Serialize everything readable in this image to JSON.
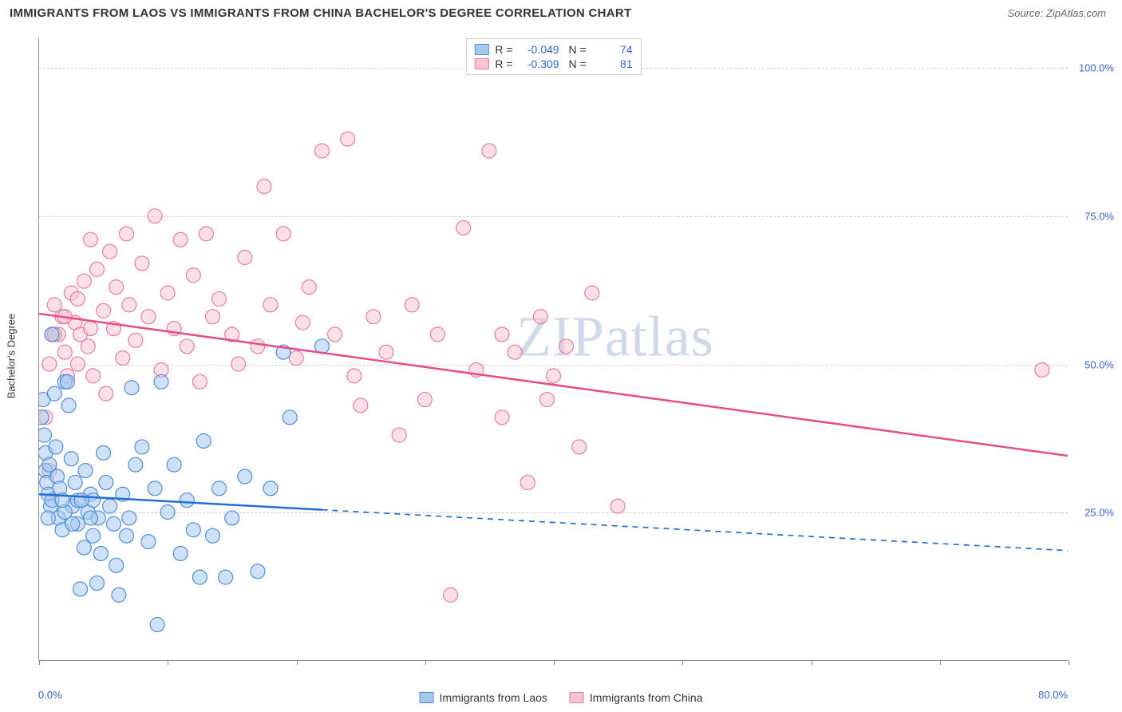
{
  "title": "IMMIGRANTS FROM LAOS VS IMMIGRANTS FROM CHINA BACHELOR'S DEGREE CORRELATION CHART",
  "source": "Source: ZipAtlas.com",
  "watermark": "ZIPatlas",
  "chart": {
    "type": "scatter",
    "y_axis_title": "Bachelor's Degree",
    "xlim": [
      0,
      80
    ],
    "ylim": [
      0,
      105
    ],
    "x_ticks": [
      0,
      10,
      20,
      30,
      40,
      50,
      60,
      70,
      80
    ],
    "x_tick_labels": {
      "left": "0.0%",
      "right": "80.0%"
    },
    "y_ticks": [
      25,
      50,
      75,
      100
    ],
    "y_tick_labels": [
      "25.0%",
      "50.0%",
      "75.0%",
      "100.0%"
    ],
    "grid_color": "#cccccc",
    "background_color": "#ffffff",
    "axis_color": "#888888",
    "label_color": "#3366cc",
    "series": [
      {
        "name": "Immigrants from Laos",
        "color_fill": "#a6c8ef",
        "color_stroke": "#4f8edb",
        "fill_opacity": 0.55,
        "marker_radius": 9,
        "R": "-0.049",
        "N": "74",
        "regression": {
          "x1": 0,
          "y1": 28.0,
          "x2": 80,
          "y2": 18.5,
          "solid_until_x": 22,
          "color": "#1f6fd4",
          "width": 2.5
        },
        "points": [
          [
            0.2,
            41
          ],
          [
            0.3,
            44
          ],
          [
            0.4,
            38
          ],
          [
            0.5,
            35
          ],
          [
            0.5,
            32
          ],
          [
            0.6,
            30
          ],
          [
            0.7,
            28
          ],
          [
            0.8,
            33
          ],
          [
            0.9,
            26
          ],
          [
            1.0,
            55
          ],
          [
            1.2,
            45
          ],
          [
            1.3,
            36
          ],
          [
            1.4,
            31
          ],
          [
            1.5,
            24
          ],
          [
            1.6,
            29
          ],
          [
            1.8,
            22
          ],
          [
            2.0,
            47
          ],
          [
            2.2,
            47
          ],
          [
            2.3,
            43
          ],
          [
            2.5,
            34
          ],
          [
            2.6,
            26
          ],
          [
            2.8,
            30
          ],
          [
            3.0,
            23
          ],
          [
            3.0,
            27
          ],
          [
            3.2,
            12
          ],
          [
            3.5,
            19
          ],
          [
            3.6,
            32
          ],
          [
            3.8,
            25
          ],
          [
            4.0,
            28
          ],
          [
            4.2,
            27
          ],
          [
            4.2,
            21
          ],
          [
            4.5,
            13
          ],
          [
            4.6,
            24
          ],
          [
            4.8,
            18
          ],
          [
            5.0,
            35
          ],
          [
            5.2,
            30
          ],
          [
            5.5,
            26
          ],
          [
            5.8,
            23
          ],
          [
            6.0,
            16
          ],
          [
            6.2,
            11
          ],
          [
            6.5,
            28
          ],
          [
            6.8,
            21
          ],
          [
            7.0,
            24
          ],
          [
            7.2,
            46
          ],
          [
            7.5,
            33
          ],
          [
            8.0,
            36
          ],
          [
            8.5,
            20
          ],
          [
            9.0,
            29
          ],
          [
            9.2,
            6
          ],
          [
            9.5,
            47
          ],
          [
            10.0,
            25
          ],
          [
            10.5,
            33
          ],
          [
            11.0,
            18
          ],
          [
            11.5,
            27
          ],
          [
            12.0,
            22
          ],
          [
            12.5,
            14
          ],
          [
            12.8,
            37
          ],
          [
            13.5,
            21
          ],
          [
            14.0,
            29
          ],
          [
            14.5,
            14
          ],
          [
            15.0,
            24
          ],
          [
            16.0,
            31
          ],
          [
            17.0,
            15
          ],
          [
            18.0,
            29
          ],
          [
            19.0,
            52
          ],
          [
            19.5,
            41
          ],
          [
            22.0,
            53
          ],
          [
            1.0,
            27
          ],
          [
            2.0,
            25
          ],
          [
            3.3,
            27
          ],
          [
            4.0,
            24
          ],
          [
            1.8,
            27
          ],
          [
            2.6,
            23
          ],
          [
            0.7,
            24
          ]
        ]
      },
      {
        "name": "Immigrants from China",
        "color_fill": "#f7c6d2",
        "color_stroke": "#e87ba0",
        "fill_opacity": 0.55,
        "marker_radius": 9,
        "R": "-0.309",
        "N": "81",
        "regression": {
          "x1": 0,
          "y1": 58.5,
          "x2": 80,
          "y2": 34.5,
          "solid_until_x": 80,
          "color": "#e84b88",
          "width": 2.5
        },
        "points": [
          [
            0.5,
            41
          ],
          [
            0.8,
            32
          ],
          [
            0.8,
            50
          ],
          [
            1.0,
            55
          ],
          [
            1.2,
            60
          ],
          [
            1.5,
            55
          ],
          [
            1.8,
            58
          ],
          [
            2.0,
            52
          ],
          [
            2.2,
            48
          ],
          [
            2.5,
            62
          ],
          [
            2.8,
            57
          ],
          [
            3.0,
            50
          ],
          [
            3.2,
            55
          ],
          [
            3.5,
            64
          ],
          [
            3.8,
            53
          ],
          [
            4.0,
            71
          ],
          [
            4.2,
            48
          ],
          [
            4.5,
            66
          ],
          [
            5.0,
            59
          ],
          [
            5.2,
            45
          ],
          [
            5.5,
            69
          ],
          [
            5.8,
            56
          ],
          [
            6.0,
            63
          ],
          [
            6.5,
            51
          ],
          [
            6.8,
            72
          ],
          [
            7.0,
            60
          ],
          [
            7.5,
            54
          ],
          [
            8.0,
            67
          ],
          [
            8.5,
            58
          ],
          [
            9.0,
            75
          ],
          [
            9.5,
            49
          ],
          [
            10.0,
            62
          ],
          [
            10.5,
            56
          ],
          [
            11.0,
            71
          ],
          [
            11.5,
            53
          ],
          [
            12.0,
            65
          ],
          [
            12.5,
            47
          ],
          [
            13.0,
            72
          ],
          [
            13.5,
            58
          ],
          [
            14.0,
            61
          ],
          [
            15.0,
            55
          ],
          [
            15.5,
            50
          ],
          [
            16.0,
            68
          ],
          [
            17.0,
            53
          ],
          [
            17.5,
            80
          ],
          [
            18.0,
            60
          ],
          [
            19.0,
            72
          ],
          [
            20.0,
            51
          ],
          [
            20.5,
            57
          ],
          [
            21.0,
            63
          ],
          [
            22.0,
            86
          ],
          [
            23.0,
            55
          ],
          [
            24.0,
            88
          ],
          [
            24.5,
            48
          ],
          [
            25.0,
            43
          ],
          [
            26.0,
            58
          ],
          [
            27.0,
            52
          ],
          [
            28.0,
            38
          ],
          [
            29.0,
            60
          ],
          [
            30.0,
            44
          ],
          [
            31.0,
            55
          ],
          [
            32.0,
            11
          ],
          [
            33.0,
            73
          ],
          [
            34.0,
            49
          ],
          [
            35.0,
            86
          ],
          [
            36.0,
            41
          ],
          [
            37.0,
            52
          ],
          [
            38.0,
            30
          ],
          [
            39.0,
            58
          ],
          [
            39.5,
            44
          ],
          [
            40.0,
            48
          ],
          [
            41.0,
            53
          ],
          [
            42.0,
            36
          ],
          [
            43.0,
            62
          ],
          [
            45.0,
            26
          ],
          [
            1.2,
            55
          ],
          [
            2.0,
            58
          ],
          [
            3.0,
            61
          ],
          [
            4.0,
            56
          ],
          [
            78.0,
            49
          ],
          [
            36.0,
            55
          ]
        ]
      }
    ]
  },
  "legend_bottom": [
    {
      "label": "Immigrants from Laos",
      "fill": "#a6c8ef",
      "stroke": "#4f8edb"
    },
    {
      "label": "Immigrants from China",
      "fill": "#f7c6d2",
      "stroke": "#e87ba0"
    }
  ]
}
